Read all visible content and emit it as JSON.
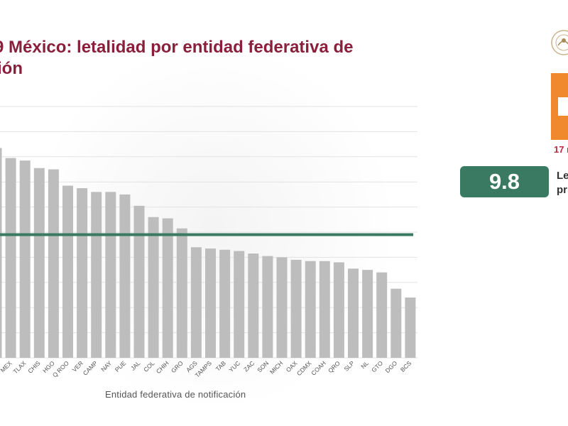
{
  "header": {
    "title_line1": "9 México: letalidad por entidad federativa de",
    "title_line2": "ión"
  },
  "side": {
    "date": "17 m",
    "rate_value": "9.8",
    "rate_label_line1": "Le",
    "rate_label_line2": "pr"
  },
  "colors": {
    "title": "#8a1f3c",
    "bar": "#bdbdbd",
    "average_line": "#3b7a62",
    "accent_orange": "#f0892e"
  },
  "chart_data": {
    "type": "bar",
    "xlabel": "Entidad federativa de notificación",
    "ylabel": "",
    "ylim": [
      0,
      20
    ],
    "grid": true,
    "average_line": 9.8,
    "categories": [
      "",
      "MEX",
      "TLAX",
      "CHIS",
      "HGO",
      "Q ROO",
      "VER",
      "CAMP",
      "NAY",
      "PUE",
      "JAL",
      "COL",
      "CHIH",
      "GRO",
      "AGS",
      "TAMPS",
      "TAB",
      "YUC",
      "ZAC",
      "SON",
      "MICH",
      "OAX",
      "CDMX",
      "COAH",
      "QRO",
      "SLP",
      "NL",
      "GTO",
      "DGO",
      "BCS"
    ],
    "values": [
      16.7,
      15.9,
      15.7,
      15.1,
      15.0,
      13.7,
      13.5,
      13.2,
      13.2,
      13.0,
      12.1,
      11.2,
      11.1,
      10.3,
      8.8,
      8.7,
      8.6,
      8.5,
      8.3,
      8.1,
      8.0,
      7.8,
      7.7,
      7.7,
      7.6,
      7.1,
      7.0,
      6.8,
      5.5,
      4.8
    ]
  }
}
